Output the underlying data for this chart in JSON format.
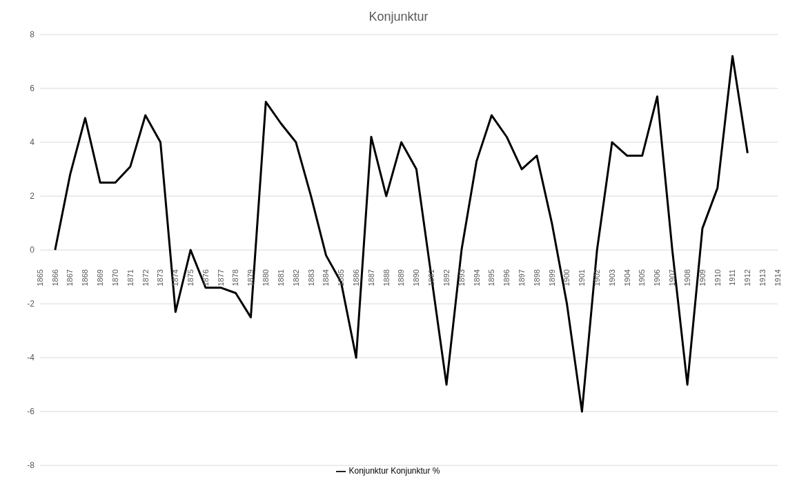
{
  "chart_data": {
    "type": "line",
    "title": "Konjunktur",
    "categories": [
      "1865",
      "1866",
      "1867",
      "1868",
      "1869",
      "1870",
      "1871",
      "1872",
      "1873",
      "1874",
      "1875",
      "1876",
      "1877",
      "1878",
      "1879",
      "1880",
      "1881",
      "1882",
      "1883",
      "1884",
      "1885",
      "1886",
      "1887",
      "1888",
      "1889",
      "1890",
      "1891",
      "1892",
      "1893",
      "1894",
      "1895",
      "1896",
      "1897",
      "1898",
      "1899",
      "1900",
      "1901",
      "1902",
      "1903",
      "1904",
      "1905",
      "1906",
      "1907",
      "1908",
      "1909",
      "1910",
      "1911",
      "1912",
      "1913",
      "1914"
    ],
    "series": [
      {
        "name": "Konjunktur Konjunktur %",
        "color": "#000000",
        "values": [
          null,
          0,
          2.8,
          4.9,
          2.5,
          2.5,
          3.1,
          5.0,
          4.0,
          -2.3,
          0,
          -1.4,
          -1.4,
          -1.6,
          -2.5,
          5.5,
          4.7,
          4.0,
          2.0,
          -0.2,
          -1.2,
          -4.0,
          4.2,
          2.0,
          4.0,
          3.0,
          -1.0,
          -5.0,
          0,
          3.3,
          5.0,
          4.2,
          3.0,
          3.5,
          1.0,
          -2.0,
          -6.0,
          0,
          4.0,
          3.5,
          3.5,
          5.7,
          0,
          -5.0,
          0.8,
          2.3,
          7.2,
          3.6,
          null,
          null
        ]
      }
    ],
    "ylim": [
      -8,
      8
    ],
    "yticks": [
      -8,
      -6,
      -4,
      -2,
      0,
      2,
      4,
      6,
      8
    ],
    "grid": "y",
    "legend": "bottom",
    "marker": "none",
    "line_style": "solid"
  }
}
